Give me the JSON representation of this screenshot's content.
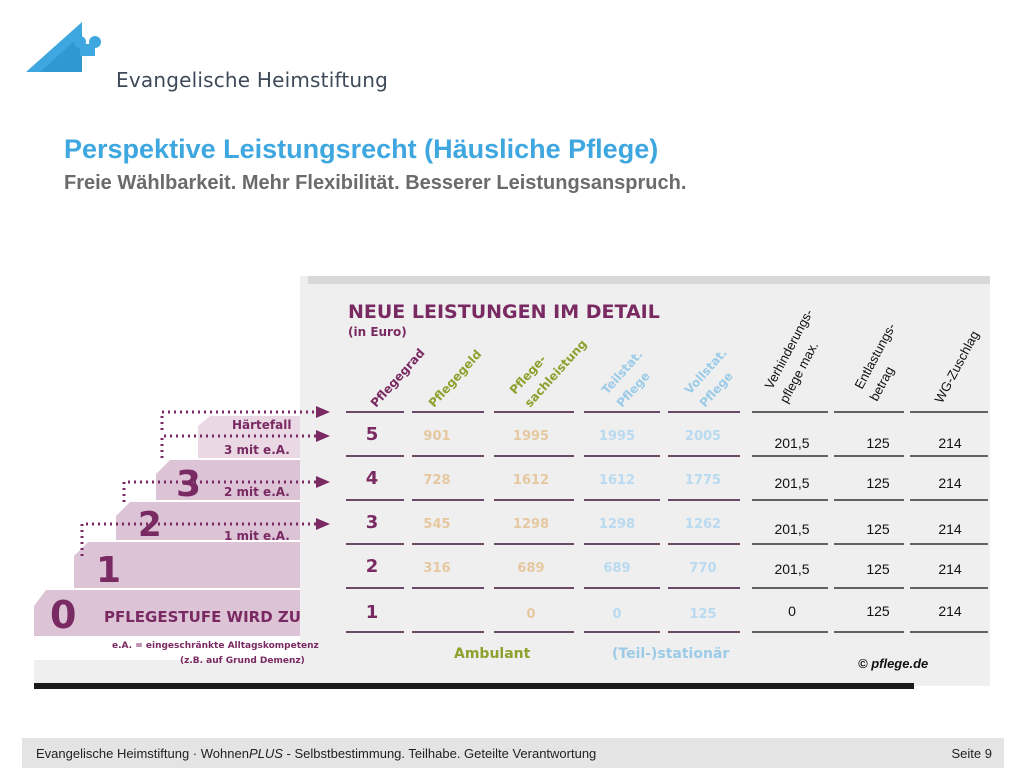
{
  "logo": {
    "name": "Evangelische Heimstiftung"
  },
  "title": "Perspektive Leistungsrecht (Häusliche Pflege)",
  "subtitle": "Freie Wählbarkeit. Mehr Flexibilität. Besserer Leistungsanspruch.",
  "graphic": {
    "heading": "NEUE LEISTUNGEN IM DETAIL",
    "unit": "(in Euro)",
    "col_headers": [
      "Pflegegrad",
      "Pflegegeld",
      "Pflege-\nsachleistung",
      "Teilstat.\nPflege",
      "Vollstat.\nPflege"
    ],
    "extra_headers": [
      "Verhinderungs-",
      "pflege max.",
      "Entlastungs-",
      "betrag",
      "WG-Zuschlag"
    ],
    "rows": [
      {
        "grade": "5",
        "pflegegeld": "901",
        "sachleistung": "1995",
        "teilstat": "1995",
        "vollstat": "2005",
        "verhinderung": "201,5",
        "entlastung": "125",
        "wg": "214"
      },
      {
        "grade": "4",
        "pflegegeld": "728",
        "sachleistung": "1612",
        "teilstat": "1612",
        "vollstat": "1775",
        "verhinderung": "201,5",
        "entlastung": "125",
        "wg": "214"
      },
      {
        "grade": "3",
        "pflegegeld": "545",
        "sachleistung": "1298",
        "teilstat": "1298",
        "vollstat": "1262",
        "verhinderung": "201,5",
        "entlastung": "125",
        "wg": "214"
      },
      {
        "grade": "2",
        "pflegegeld": "316",
        "sachleistung": "689",
        "teilstat": "689",
        "vollstat": "770",
        "verhinderung": "201,5",
        "entlastung": "125",
        "wg": "214"
      },
      {
        "grade": "1",
        "pflegegeld": "",
        "sachleistung": "0",
        "teilstat": "0",
        "vollstat": "125",
        "verhinderung": "0",
        "entlastung": "125",
        "wg": "214"
      }
    ],
    "stairs": {
      "haertefall": "Härtefall",
      "mit_ea_3": "3 mit e.A.",
      "mit_ea_2": "2 mit e.A.",
      "mit_ea_1": "1 mit e.A.",
      "step3": "3",
      "step2": "2",
      "step1": "1",
      "step0": "0",
      "pflegestufe_label": "PFLEGESTUFE WIRD ZU"
    },
    "footnote_1": "e.A. = eingeschränkte Alltagskompetenz",
    "footnote_2": "(z.B. auf Grund Demenz)",
    "bottom_ambulant": "Ambulant",
    "bottom_stationaer": "(Teil-)stationär",
    "copyright": "© pflege.de"
  },
  "footer": {
    "text_prefix": "Evangelische Heimstiftung · Wohnen",
    "text_plus": "PLUS",
    "text_suffix": " - Selbstbestimmung. Teilhabe. Geteilte Verantwortung",
    "page": "Seite 9"
  },
  "colors": {
    "title": "#3fa7e0",
    "purple": "#7a2a62",
    "olive": "#8da12e",
    "lightblue": "#9ccbe8",
    "table_bg": "#eeeeee"
  }
}
